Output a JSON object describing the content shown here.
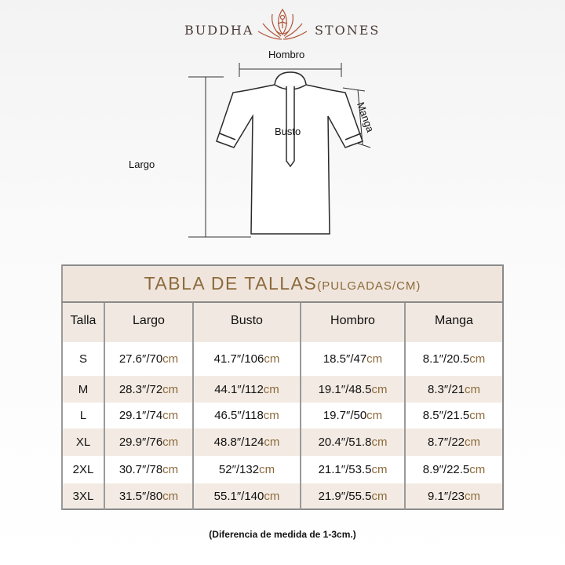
{
  "brand": {
    "left": "BUDDHA",
    "right": "STONES",
    "logo_icon": "lotus-meditation-icon"
  },
  "diagram": {
    "shoulder": "Hombro",
    "sleeve": "Manga",
    "bust": "Busto",
    "length": "Largo"
  },
  "table": {
    "title": "TABLA DE TALLAS",
    "title_unit": "(PULGADAS/CM)",
    "headers": [
      "Talla",
      "Largo",
      "Busto",
      "Hombro",
      "Manga"
    ],
    "unit": "cm",
    "rows": [
      {
        "size": "S",
        "largo": "27.6″/70",
        "busto": "41.7″/106",
        "hombro": "18.5″/47",
        "manga": "8.1″/20.5"
      },
      {
        "size": "M",
        "largo": "28.3″/72",
        "busto": "44.1″/112",
        "hombro": "19.1″/48.5",
        "manga": "8.3″/21"
      },
      {
        "size": "L",
        "largo": "29.1″/74",
        "busto": "46.5″/118",
        "hombro": "19.7″/50",
        "manga": "8.5″/21.5"
      },
      {
        "size": "XL",
        "largo": "29.9″/76",
        "busto": "48.8″/124",
        "hombro": "20.4″/51.8",
        "manga": "8.7″/22"
      },
      {
        "size": "2XL",
        "largo": "30.7″/78",
        "busto": "52″/132",
        "hombro": "21.1″/53.5",
        "manga": "8.9″/22.5"
      },
      {
        "size": "3XL",
        "largo": "31.5″/80",
        "busto": "55.1″/140",
        "hombro": "21.9″/55.5",
        "manga": "9.1″/23"
      }
    ]
  },
  "note": "(Diferencia de medida de 1-3cm.)",
  "colors": {
    "accent": "#8c6a3c",
    "header_bg": "#efe5dc",
    "logo": "#b0553a"
  }
}
